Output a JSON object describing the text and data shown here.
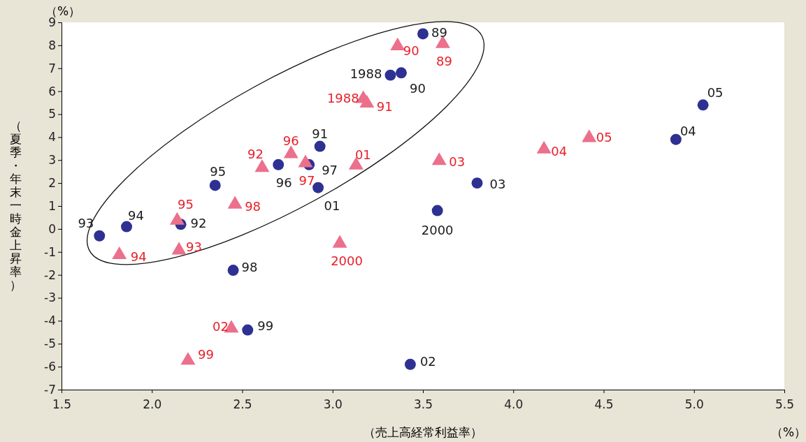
{
  "chart_data": {
    "type": "scatter",
    "xlabel": "（売上高経常利益率）",
    "ylabel": "（夏季・年末一時金上昇率）",
    "annotations": [
      "（%）",
      "（%）",
      {
        "text": "1988",
        "x": 3.32,
        "y": 6.7
      },
      {
        "text": "89",
        "x": 3.5,
        "y": 8.5
      },
      {
        "text": "90",
        "x": 3.38,
        "y": 6.8
      },
      {
        "text": "91",
        "x": 2.93,
        "y": 3.6
      },
      {
        "text": "92",
        "x": 2.16,
        "y": 0.2
      },
      {
        "text": "93",
        "x": 1.71,
        "y": -0.3
      },
      {
        "text": "94",
        "x": 1.86,
        "y": 0.1
      },
      {
        "text": "95",
        "x": 2.35,
        "y": 1.9
      },
      {
        "text": "96",
        "x": 2.7,
        "y": 2.8
      },
      {
        "text": "97",
        "x": 2.87,
        "y": 2.8
      },
      {
        "text": "98",
        "x": 2.45,
        "y": -1.8
      },
      {
        "text": "99",
        "x": 2.53,
        "y": -4.4
      },
      {
        "text": "2000",
        "x": 3.58,
        "y": 0.8
      },
      {
        "text": "01",
        "x": 2.92,
        "y": 1.8
      },
      {
        "text": "02",
        "x": 3.43,
        "y": -5.9
      },
      {
        "text": "03",
        "x": 3.8,
        "y": 2.0
      },
      {
        "text": "04",
        "x": 4.9,
        "y": 3.9
      },
      {
        "text": "05",
        "x": 5.05,
        "y": 5.4
      },
      {
        "text": "1988",
        "x": 3.17,
        "y": 5.7
      },
      {
        "text": "89",
        "x": 3.61,
        "y": 8.1
      },
      {
        "text": "90",
        "x": 3.36,
        "y": 8.0
      },
      {
        "text": "91",
        "x": 3.19,
        "y": 5.5
      },
      {
        "text": "92",
        "x": 2.61,
        "y": 2.7
      },
      {
        "text": "93",
        "x": 2.15,
        "y": -0.9
      },
      {
        "text": "94",
        "x": 1.82,
        "y": -1.1
      },
      {
        "text": "95",
        "x": 2.14,
        "y": 0.4
      },
      {
        "text": "96",
        "x": 2.77,
        "y": 3.3
      },
      {
        "text": "97",
        "x": 2.85,
        "y": 2.9
      },
      {
        "text": "98",
        "x": 2.46,
        "y": 1.1
      },
      {
        "text": "99",
        "x": 2.2,
        "y": -5.7
      },
      {
        "text": "2000",
        "x": 3.04,
        "y": -0.6
      },
      {
        "text": "01",
        "x": 3.13,
        "y": 2.8
      },
      {
        "text": "02",
        "x": 2.44,
        "y": -4.3
      },
      {
        "text": "03",
        "x": 3.59,
        "y": 3.0
      },
      {
        "text": "04",
        "x": 4.17,
        "y": 3.5
      },
      {
        "text": "05",
        "x": 4.42,
        "y": 4.0
      }
    ],
    "xlim": [
      1.5,
      5.5
    ],
    "xticks": [
      1.5,
      {
        "value": 2,
        "label": "2.0"
      },
      2.5,
      {
        "value": 3,
        "label": "3.0"
      },
      3.5,
      {
        "value": 4,
        "label": "4.0"
      },
      4.5,
      {
        "value": 5,
        "label": "5.0"
      },
      5.5
    ],
    "ylim": [
      -7,
      9
    ],
    "yticks": [
      -7,
      -6,
      -5,
      -4,
      -3,
      -2,
      -1,
      0,
      1,
      2,
      3,
      4,
      5,
      6,
      7,
      8,
      9
    ],
    "grid": false,
    "series": [
      {
        "color": "#2e3192",
        "marker": "circle",
        "x": [
          3.32,
          3.5,
          3.38,
          2.93,
          2.16,
          1.71,
          1.86,
          2.35,
          2.7,
          2.87,
          2.45,
          2.53,
          3.58,
          2.92,
          3.43,
          3.8,
          4.9,
          5.05
        ],
        "values": [
          6.7,
          8.5,
          6.8,
          3.6,
          0.2,
          -0.3,
          0.1,
          1.9,
          2.8,
          2.8,
          -1.8,
          -4.4,
          0.8,
          1.8,
          -5.9,
          2.0,
          3.9,
          5.4
        ]
      },
      {
        "color": "#ec6f8c",
        "marker": "triangle",
        "x": [
          3.17,
          3.61,
          3.36,
          3.19,
          2.61,
          2.15,
          1.82,
          2.14,
          2.77,
          2.85,
          2.46,
          2.2,
          3.04,
          3.13,
          2.44,
          3.59,
          4.17,
          4.42
        ],
        "values": [
          5.7,
          8.1,
          8.0,
          5.5,
          2.7,
          -0.9,
          -1.1,
          0.4,
          3.3,
          2.9,
          1.1,
          -5.7,
          -0.6,
          2.8,
          -4.3,
          3.0,
          3.5,
          4.0
        ]
      }
    ]
  }
}
